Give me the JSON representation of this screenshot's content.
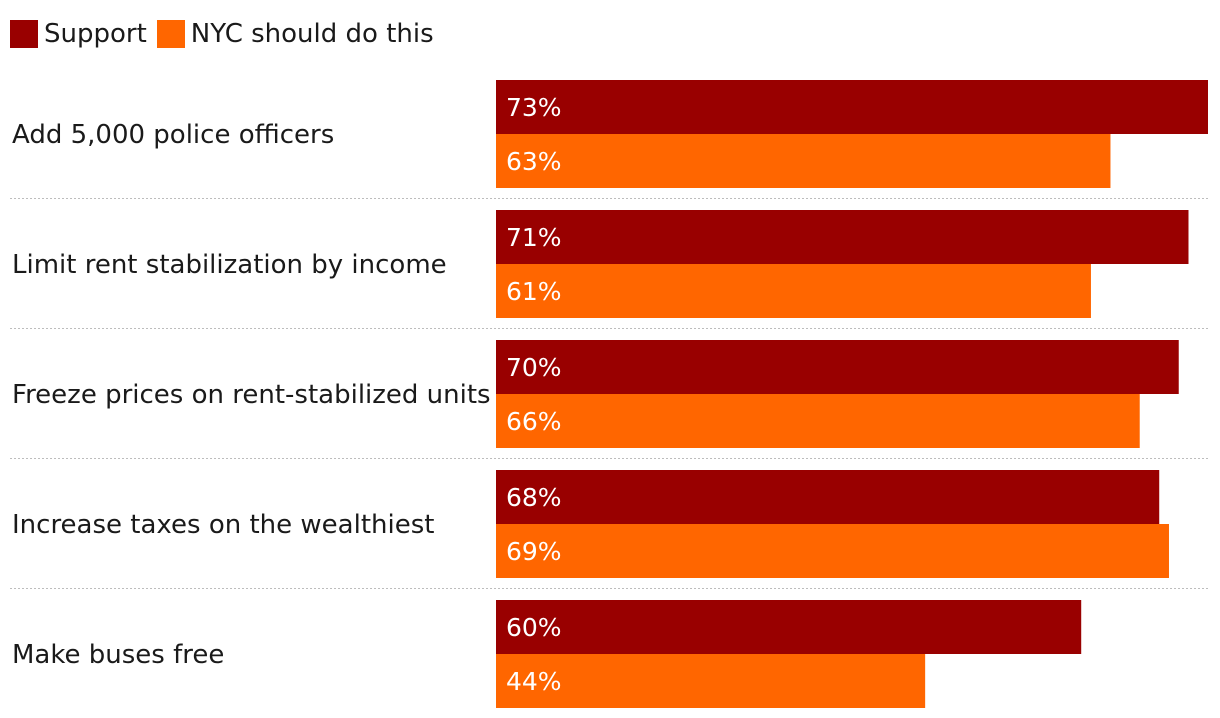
{
  "colors": {
    "support": "#990000",
    "nyc_should_do": "#ff6600",
    "bar_text": "#ffffff",
    "divider": "#bdbdbd"
  },
  "legend": [
    {
      "label": "Support",
      "color": "#990000"
    },
    {
      "label": "NYC should do this",
      "color": "#ff6600"
    }
  ],
  "chart_data": {
    "type": "bar",
    "orientation": "horizontal",
    "categories": [
      "Add 5,000 police officers",
      "Limit rent stabilization by income",
      "Freeze prices on rent-stabilized units",
      "Increase taxes on the wealthiest",
      "Make buses free"
    ],
    "series": [
      {
        "name": "Support",
        "values": [
          73,
          71,
          70,
          68,
          60
        ],
        "color": "#990000"
      },
      {
        "name": "NYC should do this",
        "values": [
          63,
          61,
          66,
          69,
          44
        ],
        "color": "#ff6600"
      }
    ],
    "value_suffix": "%",
    "xlim": [
      0,
      73
    ],
    "grid": false,
    "legend_position": "top-left"
  }
}
